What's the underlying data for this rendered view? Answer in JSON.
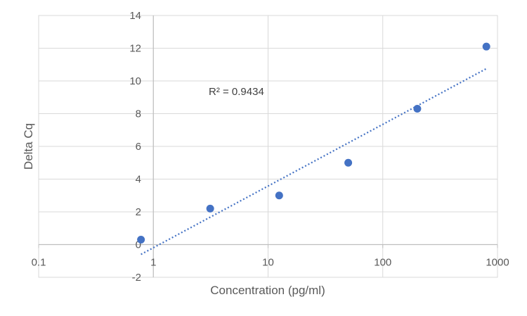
{
  "chart_data": {
    "type": "scatter",
    "title": "",
    "xlabel": "Concentration (pg/ml)",
    "ylabel": "Delta Cq",
    "x_scale": "log",
    "xlim": [
      0.1,
      1000
    ],
    "ylim": [
      -2,
      14
    ],
    "x_ticks": [
      "0.1",
      "1",
      "10",
      "100",
      "1000"
    ],
    "y_ticks": [
      "-2",
      "0",
      "2",
      "4",
      "6",
      "8",
      "10",
      "12",
      "14"
    ],
    "grid": true,
    "legend": "none",
    "colors": {
      "points": "#4472C4",
      "trendline": "#4472C4",
      "grid": "#D9D9D9",
      "text": "#595959"
    },
    "series": [
      {
        "x": [
          0.78,
          3.13,
          12.5,
          50,
          200,
          800
        ],
        "y": [
          0.3,
          2.2,
          3.0,
          5.0,
          8.3,
          12.1
        ]
      }
    ],
    "trendline": {
      "type": "logarithmic",
      "style": "dotted",
      "x_range": [
        0.78,
        800
      ],
      "y_at_start": -0.6,
      "y_at_end": 10.75,
      "r_squared_label": "R² = 0.9434"
    }
  }
}
